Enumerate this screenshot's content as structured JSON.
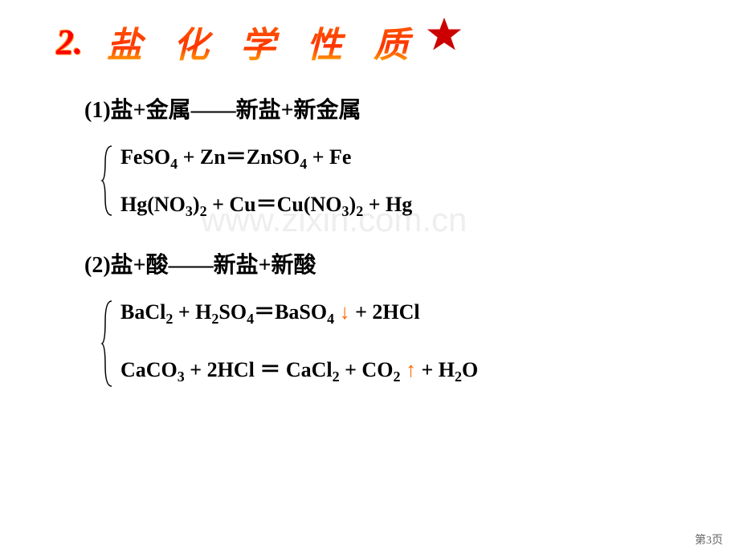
{
  "header": {
    "number": "2.",
    "title": "盐 化 学 性 质"
  },
  "star": {
    "fill_color": "#cc0000",
    "size": 46
  },
  "watermark": "www.zixin.com.cn",
  "rules": [
    {
      "label": "(1)盐+金属——新盐+新金属",
      "equations": [
        {
          "parts": [
            {
              "type": "text",
              "value": "FeSO"
            },
            {
              "type": "sub",
              "value": "4"
            },
            {
              "type": "text",
              "value": " + Zn＝ZnSO"
            },
            {
              "type": "sub",
              "value": "4"
            },
            {
              "type": "text",
              "value": " + Fe"
            }
          ]
        },
        {
          "parts": [
            {
              "type": "text",
              "value": "Hg(NO"
            },
            {
              "type": "sub",
              "value": "3"
            },
            {
              "type": "text",
              "value": ")"
            },
            {
              "type": "sub",
              "value": "2"
            },
            {
              "type": "text",
              "value": " + Cu＝Cu(NO"
            },
            {
              "type": "sub",
              "value": "3"
            },
            {
              "type": "text",
              "value": ")"
            },
            {
              "type": "sub",
              "value": "2"
            },
            {
              "type": "text",
              "value": " + Hg"
            }
          ]
        }
      ],
      "brace_height": 90
    },
    {
      "label": "(2)盐+酸——新盐+新酸",
      "equations": [
        {
          "parts": [
            {
              "type": "text",
              "value": "BaCl"
            },
            {
              "type": "sub",
              "value": "2"
            },
            {
              "type": "text",
              "value": " + H"
            },
            {
              "type": "sub",
              "value": "2"
            },
            {
              "type": "text",
              "value": "SO"
            },
            {
              "type": "sub",
              "value": "4"
            },
            {
              "type": "text",
              "value": "＝BaSO"
            },
            {
              "type": "sub",
              "value": "4"
            },
            {
              "type": "text",
              "value": " "
            },
            {
              "type": "arrow-down",
              "value": "↓"
            },
            {
              "type": "text",
              "value": " + 2HCl"
            }
          ]
        },
        {
          "parts": [
            {
              "type": "text",
              "value": "CaCO"
            },
            {
              "type": "sub",
              "value": "3"
            },
            {
              "type": "text",
              "value": " + 2HCl ＝ CaCl"
            },
            {
              "type": "sub",
              "value": "2"
            },
            {
              "type": "text",
              "value": " + CO"
            },
            {
              "type": "sub",
              "value": "2"
            },
            {
              "type": "text",
              "value": " "
            },
            {
              "type": "arrow-up",
              "value": "↑"
            },
            {
              "type": "text",
              "value": " + H"
            },
            {
              "type": "sub",
              "value": "2"
            },
            {
              "type": "text",
              "value": "O"
            }
          ]
        }
      ],
      "brace_height": 110
    }
  ],
  "page_number": "第3页"
}
